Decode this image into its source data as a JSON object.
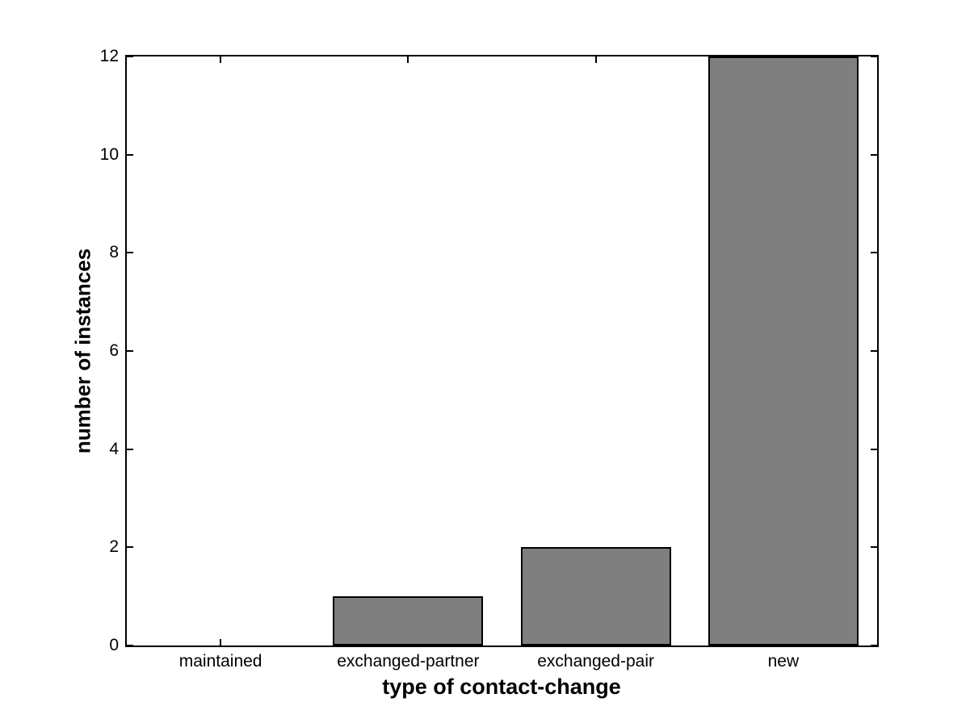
{
  "chart_data": {
    "type": "bar",
    "categories": [
      "maintained",
      "exchanged-partner",
      "exchanged-pair",
      "new"
    ],
    "values": [
      0,
      1,
      2,
      12
    ],
    "title": "",
    "xlabel": "type of contact-change",
    "ylabel": "number of instances",
    "ylim": [
      0,
      12
    ],
    "yticks": [
      0,
      2,
      4,
      6,
      8,
      10,
      12
    ],
    "bar_width_fraction": 0.8,
    "bar_fill_color": "#7f7f7f",
    "bar_edge_color": "#000000",
    "axis_color": "#000000",
    "background_color": "#ffffff",
    "grid": false,
    "legend": "none",
    "tick_direction": "in",
    "box": "on"
  }
}
